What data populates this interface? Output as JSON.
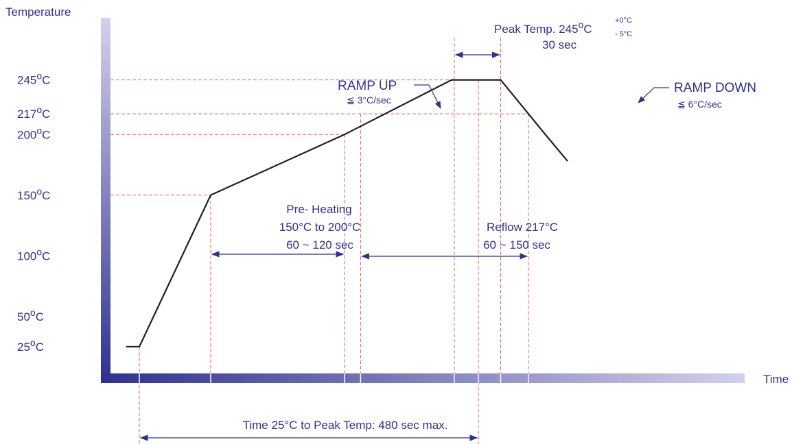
{
  "chart_data": {
    "type": "line",
    "ylabel": "Temperature",
    "xlabel": "Time",
    "y_ticks": [
      {
        "value": 245,
        "label": "245°C"
      },
      {
        "value": 217,
        "label": "217°C"
      },
      {
        "value": 200,
        "label": "200°C"
      },
      {
        "value": 150,
        "label": "150°C"
      },
      {
        "value": 100,
        "label": "100°C"
      },
      {
        "value": 50,
        "label": "50°C"
      },
      {
        "value": 25,
        "label": "25°C"
      }
    ],
    "series": [
      {
        "points": [
          {
            "x": -15,
            "y": 25
          },
          {
            "x": 0,
            "y": 25
          },
          {
            "x": 80,
            "y": 150
          },
          {
            "x": 230,
            "y": 200
          },
          {
            "x": 350,
            "y": 245
          },
          {
            "x": 405,
            "y": 245
          },
          {
            "x": 455,
            "y": 200
          },
          {
            "x": 480,
            "y": 178
          }
        ]
      }
    ],
    "xlim": [
      -25,
      520
    ],
    "ylim": [
      0,
      270
    ],
    "markers": {
      "preheat_start": 80,
      "preheat_end": 230,
      "reflow_start": 248,
      "peak_start": 353,
      "peak_mid": 380,
      "peak_end": 405,
      "reflow_end": 436,
      "total_start": 0,
      "total_end": 380
    },
    "annotations": {
      "peak_temp": {
        "text": "Peak Temp. 245",
        "sup1": "o",
        "text2": "C",
        "sup2": "+0°C",
        "sub2": "- 5°C"
      },
      "peak_duration": "30 sec",
      "ramp_up": {
        "title": "RAMP UP",
        "rate": "≦ 3°C/sec"
      },
      "ramp_down": {
        "title": "RAMP DOWN",
        "rate": "≦ 6°C/sec"
      },
      "preheat": {
        "line1": "Pre- Heating",
        "line2": "150°C to 200°C",
        "line3": "60 ~ 120 sec"
      },
      "reflow": {
        "line1": "Reflow 217°C",
        "line2": "60 ~ 150 sec"
      },
      "total": "Time 25°C to Peak Temp: 480 sec max."
    },
    "colors": {
      "text": "#2e3192",
      "curve": "#231f20",
      "guide": "#ef5b5b",
      "axis_dark": "#2e3192",
      "axis_light": "#c9c8e6"
    }
  }
}
